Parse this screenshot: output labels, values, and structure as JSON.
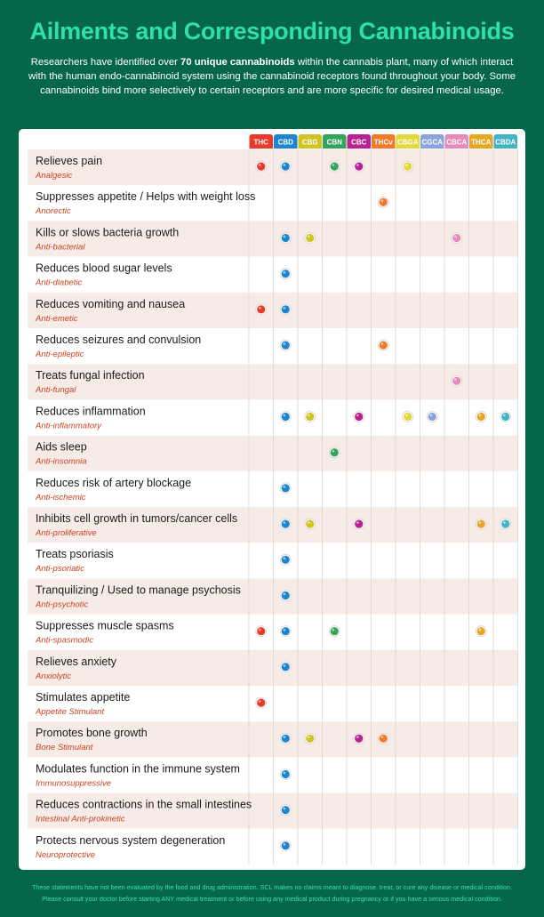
{
  "title": "Ailments and Corresponding Cannabinoids",
  "intro": {
    "before": "Researchers have identified over ",
    "bold": "70 unique cannabinoids",
    "after": " within the cannabis plant, many of which interact with the human endo-cannabinoid system using the cannabinoid receptors found throughout your body.  Some cannabinoids bind more selectively to certain receptors and are more specific for desired medical usage."
  },
  "footer": {
    "line1": "These statements have not been evaluated by the food and drug administration. SCL makes no claims meant to diagnose, treat, or cure any disease or medical condition.",
    "line2": "Please consult your doctor before starting ANY medical treatment or before using any medical product during pregnancy or if you have a serious medical condition."
  },
  "colors": {
    "background": "#05664a",
    "title": "#2fe0a8",
    "row_alt": "#f7ebe8",
    "subtitle": "#c8431f"
  },
  "chart_data": {
    "type": "table",
    "columns": [
      {
        "name": "THC",
        "color": "#e8392b"
      },
      {
        "name": "CBD",
        "color": "#1e86d0"
      },
      {
        "name": "CBG",
        "color": "#d0c322"
      },
      {
        "name": "CBN",
        "color": "#34a35c"
      },
      {
        "name": "CBC",
        "color": "#b62390"
      },
      {
        "name": "THCv",
        "color": "#f07a2a"
      },
      {
        "name": "CBGA",
        "color": "#e2d83a"
      },
      {
        "name": "CGCA",
        "color": "#8aa4da"
      },
      {
        "name": "CBCA",
        "color": "#e689bb"
      },
      {
        "name": "THCA",
        "color": "#e6a626"
      },
      {
        "name": "CBDA",
        "color": "#40b3c4"
      }
    ],
    "rows": [
      {
        "ailment": "Relieves pain",
        "term": "Analgesic",
        "cannabinoids": [
          "THC",
          "CBD",
          "CBN",
          "CBC",
          "CBGA"
        ]
      },
      {
        "ailment": "Suppresses appetite / Helps with weight loss",
        "term": "Anorectic",
        "cannabinoids": [
          "THCv"
        ]
      },
      {
        "ailment": "Kills or slows bacteria growth",
        "term": "Anti-bacterial",
        "cannabinoids": [
          "CBD",
          "CBG",
          "CBCA"
        ]
      },
      {
        "ailment": "Reduces blood sugar levels",
        "term": "Anti-diabetic",
        "cannabinoids": [
          "CBD"
        ]
      },
      {
        "ailment": "Reduces vomiting and nausea",
        "term": "Anti-emetic",
        "cannabinoids": [
          "THC",
          "CBD"
        ]
      },
      {
        "ailment": "Reduces seizures and convulsion",
        "term": "Anti-epileptic",
        "cannabinoids": [
          "CBD",
          "THCv"
        ]
      },
      {
        "ailment": "Treats fungal infection",
        "term": "Anti-fungal",
        "cannabinoids": [
          "CBCA"
        ]
      },
      {
        "ailment": "Reduces inflammation",
        "term": "Anti-inflammatory",
        "cannabinoids": [
          "CBD",
          "CBG",
          "CBC",
          "CBGA",
          "CGCA",
          "THCA",
          "CBDA"
        ]
      },
      {
        "ailment": "Aids sleep",
        "term": "Anti-insomnia",
        "cannabinoids": [
          "CBN"
        ]
      },
      {
        "ailment": "Reduces risk of artery blockage",
        "term": "Anti-ischemic",
        "cannabinoids": [
          "CBD"
        ]
      },
      {
        "ailment": "Inhibits cell growth in tumors/cancer cells",
        "term": "Anti-proliferative",
        "cannabinoids": [
          "CBD",
          "CBG",
          "CBC",
          "THCA",
          "CBDA"
        ]
      },
      {
        "ailment": "Treats psoriasis",
        "term": "Anti-psoriatic",
        "cannabinoids": [
          "CBD"
        ]
      },
      {
        "ailment": "Tranquilizing / Used to manage psychosis",
        "term": "Anti-psychotic",
        "cannabinoids": [
          "CBD"
        ]
      },
      {
        "ailment": "Suppresses muscle spasms",
        "term": "Anti-spasmodic",
        "cannabinoids": [
          "THC",
          "CBD",
          "CBN",
          "THCA"
        ]
      },
      {
        "ailment": "Relieves anxiety",
        "term": "Anxiolytic",
        "cannabinoids": [
          "CBD"
        ]
      },
      {
        "ailment": "Stimulates appetite",
        "term": "Appetite Stimulant",
        "cannabinoids": [
          "THC"
        ]
      },
      {
        "ailment": "Promotes bone growth",
        "term": "Bone Stimulant",
        "cannabinoids": [
          "CBD",
          "CBG",
          "CBC",
          "THCv"
        ]
      },
      {
        "ailment": "Modulates function in the immune system",
        "term": "Immunosuppressive",
        "cannabinoids": [
          "CBD"
        ]
      },
      {
        "ailment": "Reduces contractions in the small intestines",
        "term": "Intestinal Anti-prokinetic",
        "cannabinoids": [
          "CBD"
        ]
      },
      {
        "ailment": "Protects nervous system degeneration",
        "term": "Neuroprotective",
        "cannabinoids": [
          "CBD"
        ]
      }
    ]
  }
}
